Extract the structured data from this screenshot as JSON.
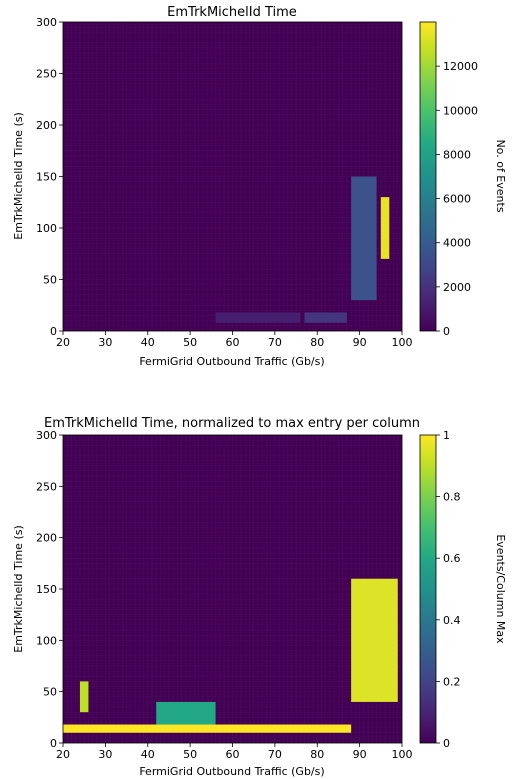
{
  "chart_data": [
    {
      "type": "heatmap",
      "title": "EmTrkMichelId Time",
      "xlabel": "FermiGrid Outbound Traffic (Gb/s)",
      "ylabel": "EmTrkMichelId Time (s)",
      "xlim": [
        20,
        100
      ],
      "ylim": [
        0,
        300
      ],
      "xticks": [
        20,
        30,
        40,
        50,
        60,
        70,
        80,
        90,
        100
      ],
      "yticks": [
        0,
        50,
        100,
        150,
        200,
        250,
        300
      ],
      "colorbar": {
        "label": "No. of Events",
        "range": [
          0,
          14000
        ],
        "ticks": [
          0,
          2000,
          4000,
          6000,
          8000,
          10000,
          12000
        ],
        "colormap": "viridis"
      },
      "notable_regions": [
        {
          "x": [
            56,
            76
          ],
          "y": [
            8,
            18
          ],
          "value": 1200
        },
        {
          "x": [
            77,
            87
          ],
          "y": [
            8,
            18
          ],
          "value": 2200
        },
        {
          "x": [
            88,
            94
          ],
          "y": [
            30,
            150
          ],
          "value": 3500
        },
        {
          "x": [
            95,
            97
          ],
          "y": [
            70,
            130
          ],
          "value": 13500
        }
      ]
    },
    {
      "type": "heatmap",
      "title": "EmTrkMichelId Time, normalized to max entry per column",
      "xlabel": "FermiGrid Outbound Traffic (Gb/s)",
      "ylabel": "EmTrkMichelId Time (s)",
      "xlim": [
        20,
        100
      ],
      "ylim": [
        0,
        300
      ],
      "xticks": [
        20,
        30,
        40,
        50,
        60,
        70,
        80,
        90,
        100
      ],
      "yticks": [
        0,
        50,
        100,
        150,
        200,
        250,
        300
      ],
      "colorbar": {
        "label": "Events/Column Max",
        "range": [
          0,
          1
        ],
        "ticks": [
          0.0,
          0.2,
          0.4,
          0.6,
          0.8,
          1.0
        ],
        "colormap": "viridis"
      },
      "notable_regions": [
        {
          "x": [
            20,
            88
          ],
          "y": [
            10,
            18
          ],
          "value": 1.0
        },
        {
          "x": [
            24,
            26
          ],
          "y": [
            30,
            60
          ],
          "value": 0.9
        },
        {
          "x": [
            42,
            56
          ],
          "y": [
            18,
            40
          ],
          "value": 0.6
        },
        {
          "x": [
            88,
            99
          ],
          "y": [
            40,
            160
          ],
          "value": 0.95
        }
      ]
    }
  ]
}
